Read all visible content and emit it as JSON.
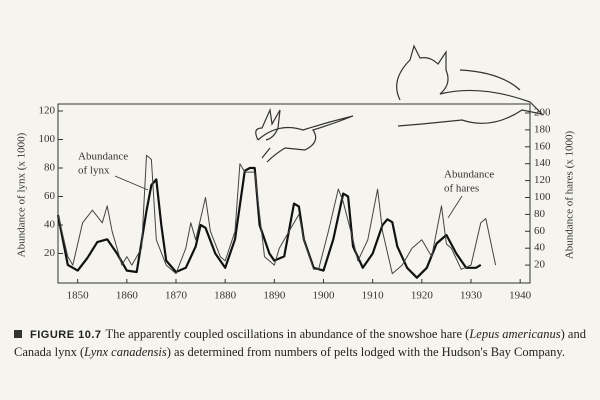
{
  "chart_data": {
    "type": "line",
    "annotations": {
      "lynx": [
        "Abundance",
        "of lynx"
      ],
      "hares": [
        "Abundance",
        "of hares"
      ]
    },
    "ylabel": "Abundance of lynx (x 1000)",
    "y2label": "Abundance of hares (x 1000)",
    "xlim": [
      1846,
      1942
    ],
    "xticks": [
      1850,
      1860,
      1870,
      1880,
      1890,
      1900,
      1910,
      1920,
      1930,
      1940
    ],
    "ylim": [
      0,
      120
    ],
    "yticks": [
      20,
      40,
      60,
      80,
      100,
      120
    ],
    "y2lim": [
      0,
      200
    ],
    "y2ticks": [
      20,
      40,
      60,
      80,
      100,
      120,
      140,
      160,
      180,
      200
    ],
    "grid": false,
    "series": [
      {
        "name": "lynx",
        "color": "#111111",
        "width": 2.2,
        "x": [
          1846,
          1848,
          1850,
          1852,
          1854,
          1856,
          1858,
          1860,
          1862,
          1864,
          1865,
          1866,
          1867,
          1868,
          1870,
          1872,
          1874,
          1875,
          1876,
          1878,
          1880,
          1882,
          1884,
          1885,
          1886,
          1887,
          1889,
          1890,
          1892,
          1894,
          1895,
          1896,
          1898,
          1900,
          1902,
          1904,
          1905,
          1906,
          1908,
          1910,
          1912,
          1913,
          1914,
          1915,
          1917,
          1919,
          1921,
          1923,
          1925,
          1927,
          1929,
          1931,
          1932
        ],
        "values": [
          47,
          12,
          8,
          17,
          28,
          30,
          20,
          8,
          7,
          50,
          68,
          72,
          40,
          15,
          7,
          10,
          25,
          40,
          38,
          20,
          10,
          30,
          78,
          80,
          80,
          40,
          20,
          15,
          18,
          55,
          53,
          30,
          10,
          8,
          30,
          62,
          60,
          25,
          10,
          20,
          40,
          44,
          42,
          25,
          10,
          3,
          10,
          27,
          33,
          20,
          10,
          10,
          12
        ]
      },
      {
        "name": "hares",
        "color": "#444444",
        "width": 1,
        "axis": "y2",
        "x": [
          1846,
          1848,
          1849,
          1851,
          1853,
          1855,
          1856,
          1857,
          1859,
          1860,
          1861,
          1863,
          1864,
          1865,
          1866,
          1868,
          1870,
          1872,
          1873,
          1874,
          1876,
          1877,
          1879,
          1880,
          1882,
          1883,
          1884,
          1885,
          1886,
          1887,
          1888,
          1890,
          1891,
          1893,
          1895,
          1896,
          1898,
          1899,
          1901,
          1903,
          1904,
          1906,
          1907,
          1909,
          1911,
          1912,
          1914,
          1916,
          1918,
          1920,
          1922,
          1924,
          1925,
          1926,
          1928,
          1930,
          1932,
          1933,
          1935
        ],
        "values": [
          80,
          30,
          20,
          70,
          85,
          70,
          90,
          60,
          20,
          30,
          20,
          40,
          150,
          145,
          50,
          20,
          10,
          40,
          70,
          50,
          100,
          60,
          30,
          25,
          60,
          140,
          130,
          130,
          130,
          80,
          30,
          20,
          40,
          60,
          80,
          50,
          15,
          15,
          60,
          110,
          95,
          50,
          25,
          50,
          110,
          60,
          10,
          20,
          40,
          50,
          30,
          90,
          45,
          40,
          15,
          20,
          70,
          75,
          20
        ]
      }
    ]
  },
  "caption": {
    "label": "FIGURE 10.7",
    "parts": [
      "The apparently coupled oscillations in abundance of the snowshoe hare (",
      "Lepus americanus",
      ") and Canada lynx (",
      "Lynx canadensis",
      ") as determined from numbers of pelts lodged with the Hudson's Bay Company."
    ]
  }
}
